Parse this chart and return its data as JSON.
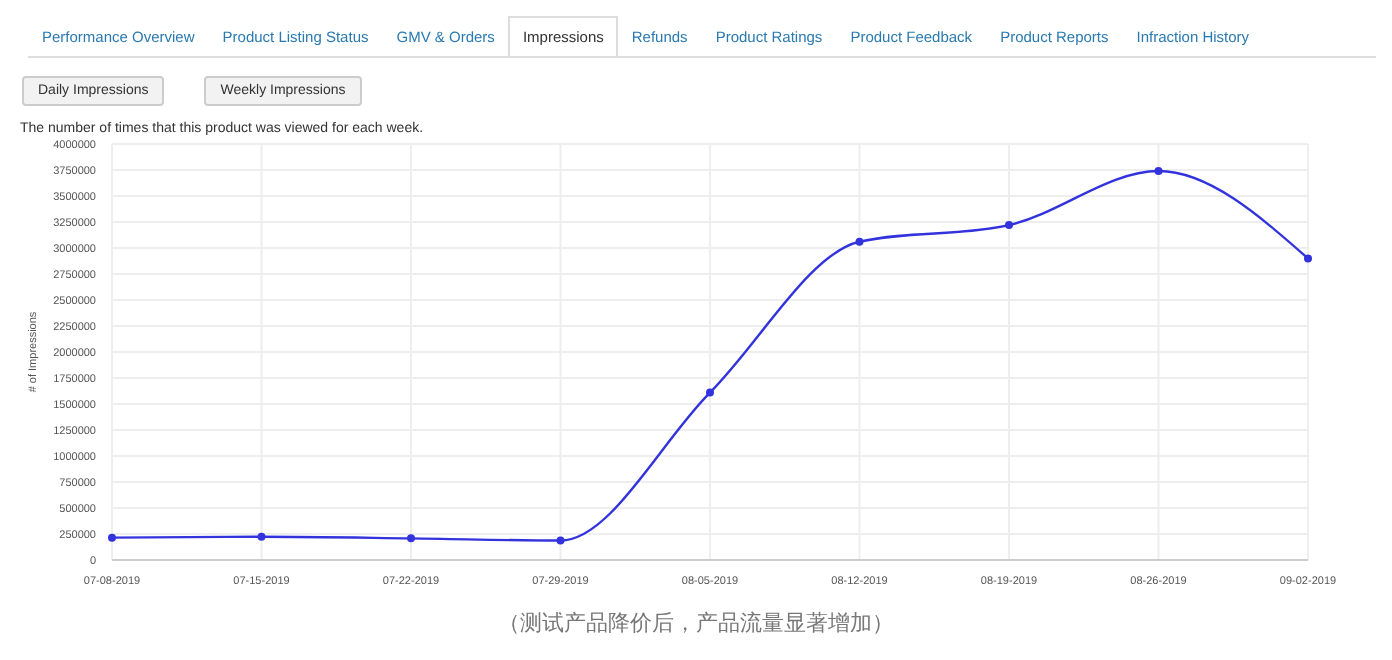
{
  "chart_data": {
    "type": "line",
    "title": "The number of times that this product was viewed for each week.",
    "ylabel": "# of Impressions",
    "categories": [
      "07-08-2019",
      "07-15-2019",
      "07-22-2019",
      "07-29-2019",
      "08-05-2019",
      "08-12-2019",
      "08-19-2019",
      "08-26-2019",
      "09-02-2019"
    ],
    "series": [
      {
        "color": "#3333dd",
        "values": [
          215000,
          223000,
          208000,
          187000,
          1610000,
          3060000,
          3220000,
          3740000,
          2900000
        ]
      }
    ],
    "ylim": [
      0,
      4000000
    ],
    "yticks": [
      0,
      250000,
      500000,
      750000,
      1000000,
      1250000,
      1500000,
      1750000,
      2000000,
      2250000,
      2500000,
      2750000,
      3000000,
      3250000,
      3500000,
      3750000,
      4000000
    ],
    "grid": true,
    "marker": "circle",
    "line_style": "solid",
    "annotations": [
      "Performance Overview",
      "Product Listing Status",
      "GMV & Orders",
      "Impressions",
      "Refunds",
      "Product Ratings",
      "Product Feedback",
      "Product Reports",
      "Infraction History",
      "Daily Impressions",
      "Weekly Impressions",
      "（测试产品降价后，产品流量显著增加）"
    ]
  }
}
